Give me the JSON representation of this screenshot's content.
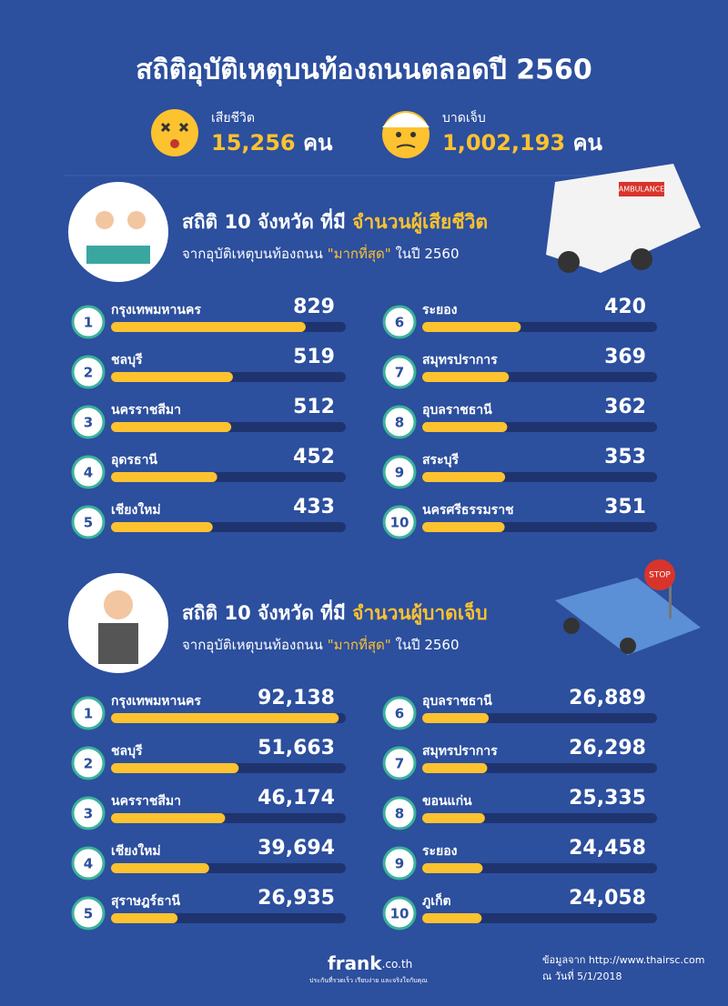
{
  "header": {
    "title": "สถิติอุบัติเหตุบนท้องถนนตลอดปี 2560",
    "deaths": {
      "label": "เสียชีวิต",
      "value": "15,256",
      "unit": "คน"
    },
    "injuries": {
      "label": "บาดเจ็บ",
      "value": "1,002,193",
      "unit": "คน"
    }
  },
  "illustrations": {
    "ambulance": "AMBULANCE",
    "stop": "STOP"
  },
  "sections": [
    {
      "title": "สถิติ 10 จังหวัด ที่มี",
      "title_highlight": "จำนวนผู้เสียชีวิต",
      "subtitle": "จากอุบัติเหตุบนท้องถนน",
      "subtitle_highlight": "\"มากที่สุด\"",
      "subtitle_end": "ในปี 2560",
      "xlim": [
        0,
        1000
      ],
      "ranks": [
        1,
        2,
        3,
        4,
        5,
        6,
        7,
        8,
        9,
        10
      ],
      "provinces": [
        "กรุงเทพมหานคร",
        "ชลบุรี",
        "นครราชสีมา",
        "อุดรธานี",
        "เชียงใหม่",
        "ระยอง",
        "สมุทรปราการ",
        "อุบลราชธานี",
        "สระบุรี",
        "นครศรีธรรมราช"
      ],
      "values": [
        829,
        519,
        512,
        452,
        433,
        420,
        369,
        362,
        353,
        351
      ]
    },
    {
      "title": "สถิติ 10 จังหวัด ที่มี",
      "title_highlight": "จำนวนผู้บาดเจ็บ",
      "subtitle": "จากอุบัติเหตุบนท้องถนน",
      "subtitle_highlight": "\"มากที่สุด\"",
      "subtitle_end": "ในปี 2560",
      "xlim": [
        0,
        95000
      ],
      "ranks": [
        1,
        2,
        3,
        4,
        5,
        6,
        7,
        8,
        9,
        10
      ],
      "provinces": [
        "กรุงเทพมหานคร",
        "ชลบุรี",
        "นครราชสีมา",
        "เชียงใหม่",
        "สุราษฎร์ธานี",
        "อุบลราชธานี",
        "สมุทรปราการ",
        "ขอนแก่น",
        "ระยอง",
        "ภูเก็ต"
      ],
      "values": [
        92138,
        51663,
        46174,
        39694,
        26935,
        26889,
        26298,
        25335,
        24458,
        24058
      ],
      "value_labels": [
        "92,138",
        "51,663",
        "46,174",
        "39,694",
        "26,935",
        "26,889",
        "26,298",
        "25,335",
        "24,458",
        "24,058"
      ]
    }
  ],
  "footer": {
    "brand": "frank",
    "brand_suffix": ".co.th",
    "tagline": "ประกันที่รวดเร็ว เรียบง่าย และจริงใจกับคุณ",
    "source": "ข้อมูลจาก http://www.thairsc.com",
    "date": "ณ วันที่ 5/1/2018"
  }
}
